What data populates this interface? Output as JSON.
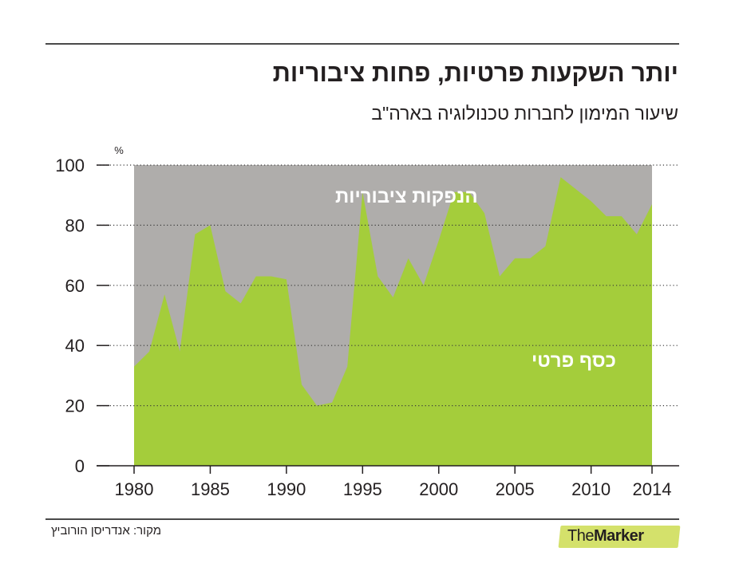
{
  "header": {
    "title": "יותר השקעות פרטיות, פחות ציבוריות",
    "subtitle": "שיעור המימון לחברות טכנולוגיה בארה\"ב"
  },
  "footer": {
    "source": "מקור: אנדריסן הורוביץ",
    "logo_prefix": "The",
    "logo_bold": "Marker"
  },
  "colors": {
    "private": "#a4cd3b",
    "public": "#afadab",
    "logo_bg": "#d4e16b"
  },
  "chart_data": {
    "type": "area",
    "stacked": true,
    "unit_label": "%",
    "ylim": [
      0,
      100
    ],
    "yticks": [
      0,
      20,
      40,
      60,
      80,
      100
    ],
    "xlim": [
      1980,
      2014
    ],
    "xticks": [
      1980,
      1985,
      1990,
      1995,
      2000,
      2005,
      2010,
      2014
    ],
    "grid": "dotted horizontal",
    "series_labels": {
      "public": "הנפקות ציבוריות",
      "private": "כסף פרטי"
    },
    "private_share": {
      "x": [
        1980,
        1981,
        1982,
        1983,
        1984,
        1985,
        1986,
        1987,
        1988,
        1989,
        1990,
        1991,
        1992,
        1993,
        1994,
        1995,
        1996,
        1997,
        1998,
        1999,
        2000,
        2001,
        2002,
        2003,
        2004,
        2005,
        2006,
        2007,
        2008,
        2009,
        2010,
        2011,
        2012,
        2013,
        2014
      ],
      "y": [
        33,
        38,
        57,
        38,
        77,
        80,
        58,
        54,
        63,
        63,
        62,
        27,
        20,
        21,
        33,
        91,
        63,
        56,
        69,
        60,
        75,
        91,
        91,
        84,
        63,
        69,
        69,
        73,
        96,
        92,
        88,
        83,
        83,
        77,
        87
      ]
    }
  }
}
